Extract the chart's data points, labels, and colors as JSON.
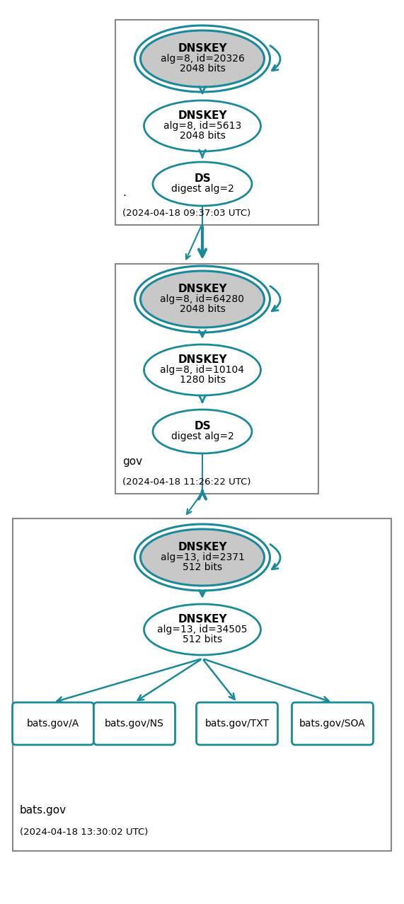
{
  "teal": "#1a8a9a",
  "gray_fill": "#c8c8c8",
  "white_fill": "#ffffff",
  "zone1_label": ".",
  "zone1_time": "(2024-04-18 09:37:03 UTC)",
  "zone1_ksk_label": "DNSKEY",
  "zone1_ksk_sub": "alg=8, id=20326\n2048 bits",
  "zone1_zsk_label": "DNSKEY",
  "zone1_zsk_sub": "alg=8, id=5613\n2048 bits",
  "zone1_ds_label": "DS",
  "zone1_ds_sub": "digest alg=2",
  "zone2_label": "gov",
  "zone2_time": "(2024-04-18 11:26:22 UTC)",
  "zone2_ksk_label": "DNSKEY",
  "zone2_ksk_sub": "alg=8, id=64280\n2048 bits",
  "zone2_zsk_label": "DNSKEY",
  "zone2_zsk_sub": "alg=8, id=10104\n1280 bits",
  "zone2_ds_label": "DS",
  "zone2_ds_sub": "digest alg=2",
  "zone3_label": "bats.gov",
  "zone3_time": "(2024-04-18 13:30:02 UTC)",
  "zone3_ksk_label": "DNSKEY",
  "zone3_ksk_sub": "alg=13, id=2371\n512 bits",
  "zone3_zsk_label": "DNSKEY",
  "zone3_zsk_sub": "alg=13, id=34505\n512 bits",
  "zone3_records": [
    "bats.gov/A",
    "bats.gov/NS",
    "bats.gov/TXT",
    "bats.gov/SOA"
  ]
}
